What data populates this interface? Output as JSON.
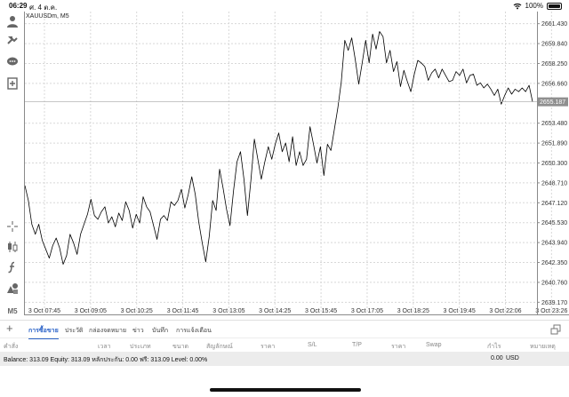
{
  "status_bar": {
    "time": "06:29",
    "date": "ศ. 4 ต.ค.",
    "battery": "100%"
  },
  "chart": {
    "title": "XAUUSDm, M5",
    "current_price": "2655.187",
    "current_price_value": 2655.187,
    "x_ticks": [
      "3 Oct 07:45",
      "3 Oct 09:05",
      "3 Oct 10:25",
      "3 Oct 11:45",
      "3 Oct 13:05",
      "3 Oct 14:25",
      "3 Oct 15:45",
      "3 Oct 17:05",
      "3 Oct 18:25",
      "3 Oct 19:45",
      "3 Oct 22:06",
      "3 Oct 23:26"
    ],
    "y_ticks": [
      "2661.430",
      "2659.840",
      "2658.250",
      "2656.660",
      "2653.480",
      "2651.890",
      "2650.300",
      "2648.710",
      "2647.120",
      "2645.530",
      "2643.940",
      "2642.350",
      "2640.760",
      "2639.170"
    ]
  },
  "chart_data": {
    "type": "line",
    "title": "XAUUSDm, M5",
    "xlabel": "",
    "ylabel": "",
    "ylim": [
      2638.2,
      2662.4
    ],
    "grid": true,
    "series": [
      {
        "values": [
          2648.5,
          2647.3,
          2645.4,
          2644.6,
          2645.4,
          2644.1,
          2643.4,
          2642.7,
          2643.7,
          2644.3,
          2643.5,
          2642.2,
          2642.9,
          2644.6,
          2643.9,
          2643.0,
          2644.6,
          2645.4,
          2646.2,
          2647.4,
          2646.1,
          2645.8,
          2646.4,
          2646.8,
          2645.5,
          2646.0,
          2645.2,
          2646.3,
          2645.7,
          2647.2,
          2646.5,
          2645.1,
          2646.2,
          2645.5,
          2647.6,
          2646.8,
          2646.4,
          2645.3,
          2644.2,
          2645.8,
          2646.1,
          2645.7,
          2647.2,
          2646.9,
          2647.3,
          2648.2,
          2646.7,
          2647.8,
          2649.2,
          2647.8,
          2645.6,
          2643.9,
          2642.4,
          2644.4,
          2647.3,
          2646.5,
          2649.8,
          2648.3,
          2646.6,
          2645.3,
          2648.1,
          2650.4,
          2651.2,
          2649.0,
          2646.1,
          2648.9,
          2652.2,
          2650.6,
          2649.0,
          2650.4,
          2651.6,
          2650.6,
          2651.8,
          2652.7,
          2651.2,
          2651.9,
          2650.4,
          2652.4,
          2650.1,
          2651.2,
          2650.1,
          2650.6,
          2653.2,
          2651.8,
          2650.3,
          2651.6,
          2649.3,
          2651.8,
          2651.3,
          2653.0,
          2654.7,
          2656.8,
          2660.1,
          2659.3,
          2660.3,
          2658.6,
          2656.6,
          2658.3,
          2660.1,
          2658.3,
          2660.6,
          2659.4,
          2660.8,
          2660.4,
          2658.3,
          2659.3,
          2657.6,
          2658.4,
          2656.4,
          2657.7,
          2656.8,
          2656.0,
          2657.4,
          2658.5,
          2658.3,
          2658.0,
          2656.9,
          2657.5,
          2657.8,
          2657.1,
          2657.8,
          2657.3,
          2656.8,
          2656.9,
          2657.6,
          2657.3,
          2657.8,
          2656.7,
          2657.3,
          2657.4,
          2656.5,
          2656.7,
          2656.3,
          2656.6,
          2656.2,
          2655.7,
          2656.2,
          2655.0,
          2655.7,
          2656.3,
          2655.8,
          2656.2,
          2656.0,
          2656.3,
          2656.0,
          2656.5,
          2655.2
        ]
      }
    ]
  },
  "tabs": {
    "items": [
      "การซื้อขาย",
      "ประวัติ",
      "กล่องจดหมาย",
      "ข่าว",
      "บันทึก",
      "การแจ้งเตือน"
    ]
  },
  "columns": [
    "คำสั่ง",
    "เวลา",
    "ประเภท",
    "ขนาด",
    "สัญลักษณ์",
    "ราคา",
    "S/L",
    "T/P",
    "ราคา",
    "Swap",
    "กำไร",
    "หมายเหตุ"
  ],
  "summary": {
    "text": "Balance: 313.09 Equity: 313.09 หลักประกัน: 0.00 ฟรี: 313.09 Level: 0.00%",
    "profit": "0.00",
    "currency": "USD"
  },
  "icons": {
    "toolbar": [
      "user-icon",
      "connect-icon",
      "chat-icon",
      "new-document-icon",
      "crosshair-icon",
      "candlestick-icon",
      "function-icon",
      "objects-icon",
      "timeframe-icon"
    ]
  }
}
